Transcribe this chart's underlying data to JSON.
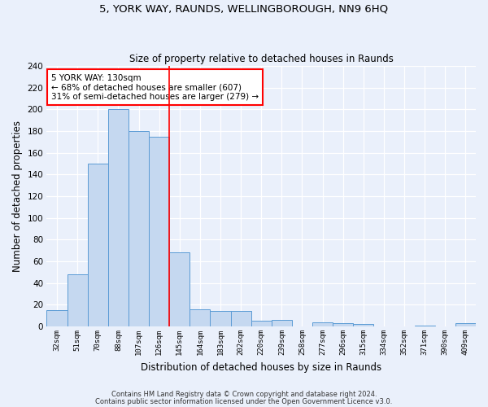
{
  "title1": "5, YORK WAY, RAUNDS, WELLINGBOROUGH, NN9 6HQ",
  "title2": "Size of property relative to detached houses in Raunds",
  "xlabel": "Distribution of detached houses by size in Raunds",
  "ylabel": "Number of detached properties",
  "categories": [
    "32sqm",
    "51sqm",
    "70sqm",
    "88sqm",
    "107sqm",
    "126sqm",
    "145sqm",
    "164sqm",
    "183sqm",
    "202sqm",
    "220sqm",
    "239sqm",
    "258sqm",
    "277sqm",
    "296sqm",
    "315sqm",
    "334sqm",
    "352sqm",
    "371sqm",
    "390sqm",
    "409sqm"
  ],
  "values": [
    15,
    48,
    150,
    200,
    180,
    175,
    68,
    16,
    14,
    14,
    5,
    6,
    0,
    4,
    3,
    2,
    0,
    0,
    1,
    0,
    3
  ],
  "bar_color": "#c5d8f0",
  "bar_edge_color": "#5b9bd5",
  "bg_color": "#eaf0fb",
  "fig_color": "#eaf0fb",
  "grid_color": "#ffffff",
  "vline_x_index": 5.5,
  "vline_color": "red",
  "annotation_text": "5 YORK WAY: 130sqm\n← 68% of detached houses are smaller (607)\n31% of semi-detached houses are larger (279) →",
  "annotation_box_color": "white",
  "annotation_box_edge": "red",
  "footnote1": "Contains HM Land Registry data © Crown copyright and database right 2024.",
  "footnote2": "Contains public sector information licensed under the Open Government Licence v3.0.",
  "ylim": [
    0,
    240
  ],
  "yticks": [
    0,
    20,
    40,
    60,
    80,
    100,
    120,
    140,
    160,
    180,
    200,
    220,
    240
  ]
}
